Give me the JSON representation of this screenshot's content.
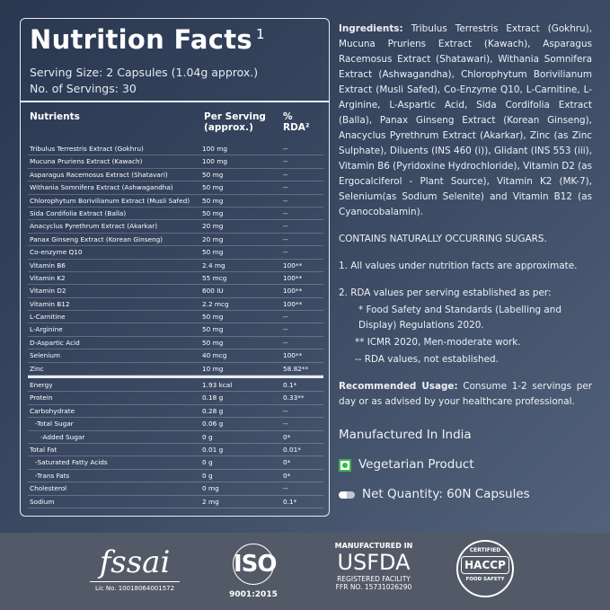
{
  "panel": {
    "title": "Nutrition Facts",
    "title_sup": "1",
    "serving_size": "Serving Size: 2 Capsules (1.04g approx.)",
    "servings": "No. of Servings: 30",
    "headers": {
      "nutrients": "Nutrients",
      "per_serving": "Per Serving (approx.)",
      "rda": "% RDA²"
    },
    "rows": [
      [
        "Tribulus Terrestris Extract (Gokhru)",
        "100 mg",
        "--"
      ],
      [
        "Mucuna Pruriens Extract (Kawach)",
        "100 mg",
        "--"
      ],
      [
        "Asparagus Racemosus Extract (Shatavari)",
        "50 mg",
        "--"
      ],
      [
        "Withania Somnifera Extract (Ashwagandha)",
        "50 mg",
        "--"
      ],
      [
        "Chlorophytum Borivilianum Extract (Musli Safed)",
        "50 mg",
        "--"
      ],
      [
        "Sida Cordifolia Extract (Balla)",
        "50 mg",
        "--"
      ],
      [
        "Anacyclus Pyrethrum Extract (Akarkar)",
        "20 mg",
        "--"
      ],
      [
        "Panax Ginseng Extract (Korean Ginseng)",
        "20 mg",
        "--"
      ],
      [
        "Co-enzyme Q10",
        "50 mg",
        "--"
      ],
      [
        "Vitamin B6",
        "2.4 mg",
        "100**"
      ],
      [
        "Vitamin K2",
        "55 mcg",
        "100**"
      ],
      [
        "Vitamin D2",
        "600 IU",
        "100**"
      ],
      [
        "Vitamin B12",
        "2.2 mcg",
        "100**"
      ],
      [
        "L-Carnitine",
        "50 mg",
        "--"
      ],
      [
        "L-Arginine",
        "50 mg",
        "--"
      ],
      [
        "D-Aspartic Acid",
        "50 mg",
        "--"
      ],
      [
        "Selenium",
        "40 mcg",
        "100**"
      ],
      [
        "Zinc",
        "10 mg",
        "58.82**"
      ]
    ],
    "rows2": [
      [
        "Energy",
        "1.93 kcal",
        "0.1*"
      ],
      [
        "Protein",
        "0.18 g",
        "0.33**"
      ],
      [
        "Carbohydrate",
        "0.28 g",
        "--"
      ],
      [
        "  -Total Sugar",
        "0.06 g",
        "--"
      ],
      [
        "    -Added Sugar",
        "0 g",
        "0*"
      ],
      [
        "Total Fat",
        "0.01 g",
        "0.01*"
      ],
      [
        "  -Saturated Fatty Acids",
        "0 g",
        "0*"
      ],
      [
        "  -Trans Fats",
        "0 g",
        "0*"
      ],
      [
        "Cholesterol",
        "0 mg",
        "--"
      ],
      [
        "Sodium",
        "2 mg",
        "0.1*"
      ]
    ]
  },
  "right": {
    "ingredients_label": "Ingredients:",
    "ingredients": " Tribulus Terrestris Extract (Gokhru), Mucuna Pruriens Extract (Kawach), Asparagus Racemosus Extract (Shatawari), Withania Somnifera Extract (Ashwagandha), Chlorophytum Borivilianum Extract (Musli Safed), Co-Enzyme Q10, L-Carnitine, L-Arginine, L-Aspartic Acid, Sida Cordifolia Extract (Balla), Panax Ginseng Extract (Korean Ginseng), Anacyclus Pyrethrum Extract (Akarkar), Zinc (as Zinc Sulphate), Diluents (INS 460 (i)), Glidant (INS 553 (iii), Vitamin B6 (Pyridoxine Hydrochloride), Vitamin D2 (as Ergocalciferol - Plant Source), Vitamin K2 (MK-7), Selenium(as Sodium Selenite) and Vitamin B12 (as Cyanocobalamin).",
    "sugars": "CONTAINS NATURALLY OCCURRING SUGARS.",
    "note1": "1.  All values under nutrition facts are approximate.",
    "note2": "2. RDA values per serving established as per:",
    "note2a": "*    Food Safety and Standards (Labelling and Display) Regulations 2020.",
    "note2b": "**  ICMR 2020, Men-moderate work.",
    "note2c": "--   RDA values, not established.",
    "usage_label": "Recommended Usage:",
    "usage": " Consume 1-2 servings per day or as advised by your healthcare professional.",
    "made": "Manufactured In India",
    "veg": "Vegetarian Product",
    "qty": "Net Quantity: 60N Capsules",
    "veg_color": "#3bb54a"
  },
  "footer": {
    "fssai": "fssai",
    "fssai_lic": "Lic No. 10018064001572",
    "iso": "ISO",
    "iso_num": "9001:2015",
    "usfda_top": "MANUFACTURED IN",
    "usfda": "USFDA",
    "usfda_reg": "REGISTERED FACILITY",
    "usfda_ffr": "FFR NO. 15731026290",
    "haccp": "HACCP",
    "haccp_top": "CERTIFIED",
    "haccp_bottom": "FOOD SAFETY"
  }
}
